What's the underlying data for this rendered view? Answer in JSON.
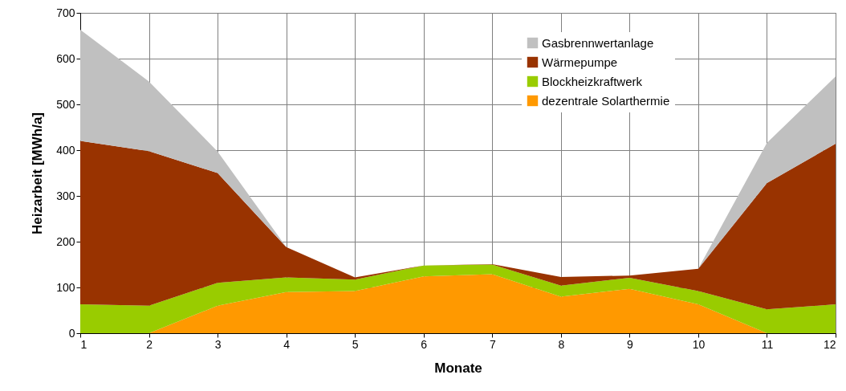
{
  "chart_data": {
    "type": "area",
    "stacked": true,
    "xlabel": "Monate",
    "ylabel": "Heizarbeit [MWh/a]",
    "x": [
      1,
      2,
      3,
      4,
      5,
      6,
      7,
      8,
      9,
      10,
      11,
      12
    ],
    "series": [
      {
        "name": "dezentrale Solarthermie",
        "color": "#ff9900",
        "values": [
          0,
          0,
          60,
          90,
          92,
          124,
          129,
          80,
          97,
          63,
          0,
          0
        ]
      },
      {
        "name": "Blockheizkraftwerk",
        "color": "#99cc00",
        "values": [
          63,
          60,
          50,
          32,
          25,
          24,
          21,
          24,
          24,
          29,
          52,
          63
        ]
      },
      {
        "name": "Wärmepumpe",
        "color": "#993300",
        "values": [
          357,
          338,
          240,
          66,
          5,
          0,
          1,
          19,
          5,
          49,
          276,
          351
        ]
      },
      {
        "name": "Gasbrennwertanlage",
        "color": "#c0c0c0",
        "values": [
          243,
          152,
          47,
          0,
          0,
          0,
          0,
          0,
          0,
          0,
          88,
          147
        ]
      }
    ],
    "xlim": [
      1,
      12
    ],
    "xticks": [
      1,
      2,
      3,
      4,
      5,
      6,
      7,
      8,
      9,
      10,
      11,
      12
    ],
    "ylim": [
      0,
      700
    ],
    "yticks": [
      0,
      100,
      200,
      300,
      400,
      500,
      600,
      700
    ],
    "grid": true,
    "legend": "top right"
  }
}
